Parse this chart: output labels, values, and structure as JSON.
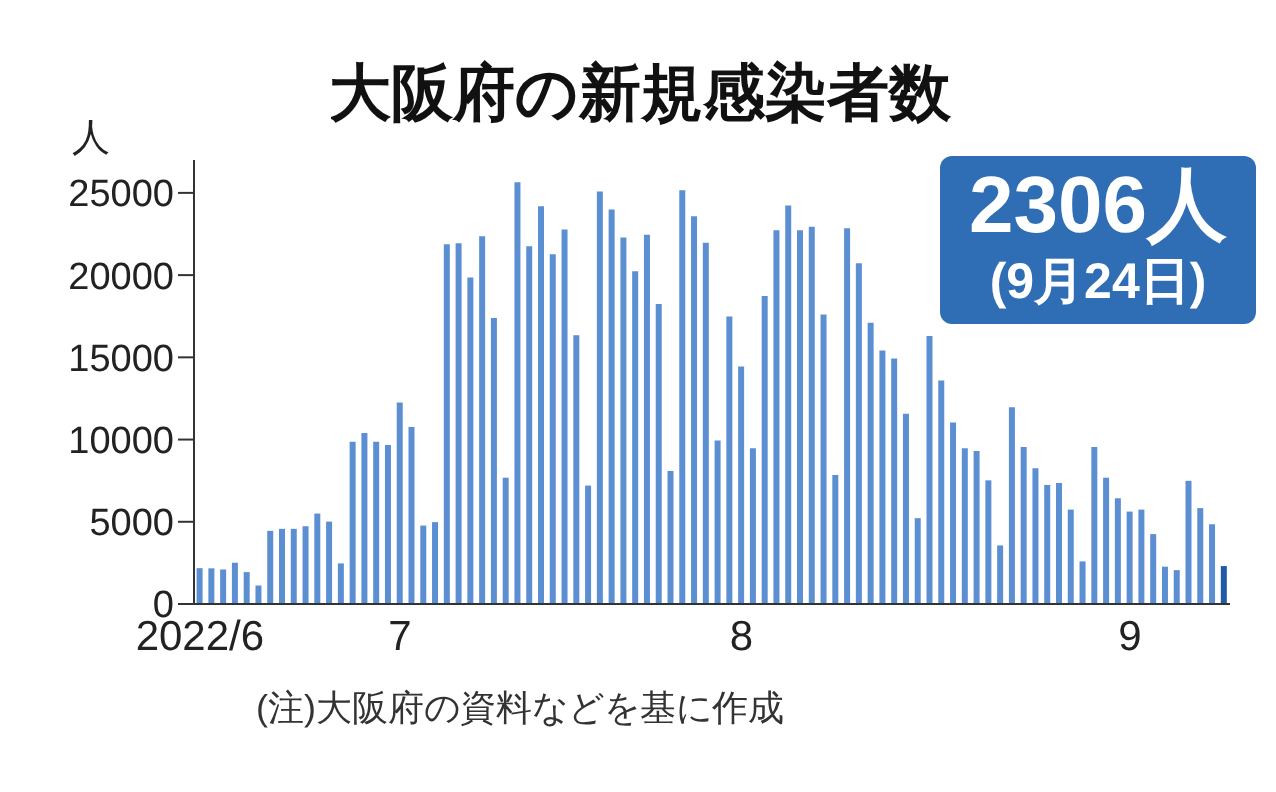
{
  "chart_data": {
    "type": "bar",
    "title": "大阪府の新規感染者数",
    "ylabel": "人",
    "categories": [
      "2022/6",
      null,
      null,
      null,
      null,
      null,
      null,
      null,
      null,
      null,
      null,
      null,
      null,
      null,
      null,
      null,
      null,
      "7",
      null,
      null,
      null,
      null,
      null,
      null,
      null,
      null,
      null,
      null,
      null,
      null,
      null,
      null,
      null,
      null,
      null,
      null,
      null,
      null,
      null,
      null,
      null,
      null,
      null,
      null,
      null,
      null,
      "8",
      null,
      null,
      null,
      null,
      null,
      null,
      null,
      null,
      null,
      null,
      null,
      null,
      null,
      null,
      null,
      null,
      null,
      null,
      null,
      null,
      null,
      null,
      null,
      null,
      null,
      null,
      null,
      null,
      null,
      null,
      null,
      null,
      "9",
      null,
      null,
      null,
      null,
      null,
      null,
      null,
      null
    ],
    "values": [
      2180,
      2170,
      2100,
      2510,
      1940,
      1130,
      4450,
      4570,
      4570,
      4730,
      5500,
      5010,
      2470,
      9870,
      10400,
      9870,
      9670,
      12260,
      10760,
      4770,
      4980,
      21880,
      21930,
      19860,
      22370,
      17390,
      7680,
      25640,
      21760,
      24190,
      21270,
      22770,
      16340,
      7200,
      25080,
      23990,
      22290,
      20230,
      22450,
      18240,
      8090,
      25160,
      23580,
      21970,
      9950,
      17480,
      14440,
      9470,
      18730,
      22730,
      24230,
      22730,
      22940,
      17600,
      7850,
      22850,
      20720,
      17110,
      15410,
      14930,
      11570,
      5220,
      16300,
      13590,
      11040,
      9470,
      9300,
      7520,
      3560,
      11970,
      9550,
      8250,
      7240,
      7360,
      5740,
      2590,
      9550,
      7680,
      6430,
      5620,
      5740,
      4250,
      2270,
      2060,
      7490,
      5830,
      4850,
      2306
    ],
    "colors": [
      "#5b8fd2",
      "#5b8fd2",
      "#5b8fd2",
      "#5b8fd2",
      "#5b8fd2",
      "#5b8fd2",
      "#5b8fd2",
      "#5b8fd2",
      "#5b8fd2",
      "#5b8fd2",
      "#5b8fd2",
      "#5b8fd2",
      "#5b8fd2",
      "#5b8fd2",
      "#5b8fd2",
      "#5b8fd2",
      "#5b8fd2",
      "#5b8fd2",
      "#5b8fd2",
      "#5b8fd2",
      "#5b8fd2",
      "#5b8fd2",
      "#5b8fd2",
      "#5b8fd2",
      "#5b8fd2",
      "#5b8fd2",
      "#5b8fd2",
      "#5b8fd2",
      "#5b8fd2",
      "#5b8fd2",
      "#5b8fd2",
      "#5b8fd2",
      "#5b8fd2",
      "#5b8fd2",
      "#5b8fd2",
      "#5b8fd2",
      "#5b8fd2",
      "#5b8fd2",
      "#5b8fd2",
      "#5b8fd2",
      "#5b8fd2",
      "#5b8fd2",
      "#5b8fd2",
      "#5b8fd2",
      "#5b8fd2",
      "#5b8fd2",
      "#5b8fd2",
      "#5b8fd2",
      "#5b8fd2",
      "#5b8fd2",
      "#5b8fd2",
      "#5b8fd2",
      "#5b8fd2",
      "#5b8fd2",
      "#5b8fd2",
      "#5b8fd2",
      "#5b8fd2",
      "#5b8fd2",
      "#5b8fd2",
      "#5b8fd2",
      "#5b8fd2",
      "#5b8fd2",
      "#5b8fd2",
      "#5b8fd2",
      "#5b8fd2",
      "#5b8fd2",
      "#5b8fd2",
      "#5b8fd2",
      "#5b8fd2",
      "#5b8fd2",
      "#5b8fd2",
      "#5b8fd2",
      "#5b8fd2",
      "#5b8fd2",
      "#5b8fd2",
      "#5b8fd2",
      "#5b8fd2",
      "#5b8fd2",
      "#5b8fd2",
      "#5b8fd2",
      "#5b8fd2",
      "#5b8fd2",
      "#5b8fd2",
      "#5b8fd2",
      "#5b8fd2",
      "#5b8fd2",
      "#5b8fd2",
      "#1f5aa6"
    ],
    "ylim": [
      0,
      27000
    ],
    "yticks": [
      0,
      5000,
      10000,
      15000,
      20000,
      25000
    ],
    "annotations": [
      "2306人",
      "(9月24日)",
      "(注)大阪府の資料などを基に作成"
    ]
  }
}
